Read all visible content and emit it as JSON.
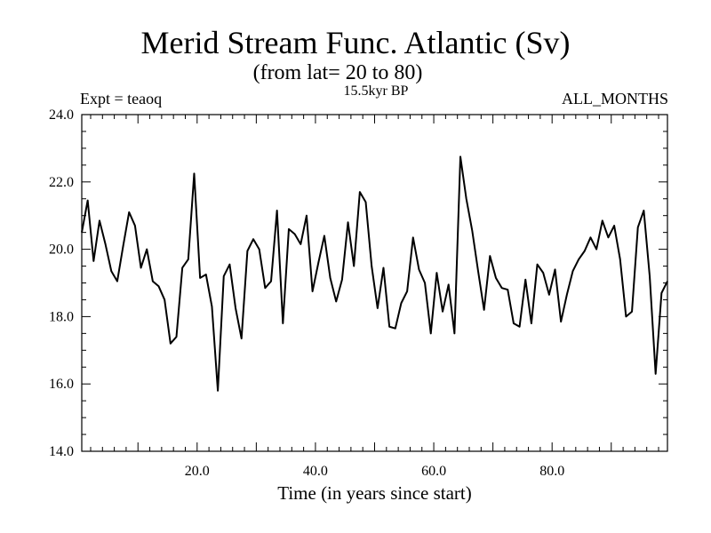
{
  "chart_data": {
    "type": "line",
    "title": "Merid Stream Func. Atlantic (Sv)",
    "subtitle": "(from lat= 20 to 80)",
    "label_left": "Expt = teaoq",
    "label_center": "15.5kyr BP",
    "label_right": "ALL_MONTHS",
    "xlabel": "Time (in years since start)",
    "ylabel": "",
    "xlim": [
      0.5,
      99.5
    ],
    "ylim": [
      14.0,
      24.0
    ],
    "x_ticks": [
      20.0,
      40.0,
      60.0,
      80.0
    ],
    "x_tick_labels": [
      "20.0",
      "40.0",
      "60.0",
      "80.0"
    ],
    "y_ticks": [
      14.0,
      16.0,
      18.0,
      20.0,
      22.0,
      24.0
    ],
    "y_tick_labels": [
      "14.0",
      "16.0",
      "18.0",
      "20.0",
      "22.0",
      "24.0"
    ],
    "grid": false,
    "series": [
      {
        "name": "Merid Stream Func. Atlantic",
        "x": [
          0.5,
          1.5,
          2.5,
          3.5,
          4.5,
          5.5,
          6.5,
          7.5,
          8.5,
          9.5,
          10.5,
          11.5,
          12.5,
          13.5,
          14.5,
          15.5,
          16.5,
          17.5,
          18.5,
          19.5,
          20.5,
          21.5,
          22.5,
          23.5,
          24.5,
          25.5,
          26.5,
          27.5,
          28.5,
          29.5,
          30.5,
          31.5,
          32.5,
          33.5,
          34.5,
          35.5,
          36.5,
          37.5,
          38.5,
          39.5,
          40.5,
          41.5,
          42.5,
          43.5,
          44.5,
          45.5,
          46.5,
          47.5,
          48.5,
          49.5,
          50.5,
          51.5,
          52.5,
          53.5,
          54.5,
          55.5,
          56.5,
          57.5,
          58.5,
          59.5,
          60.5,
          61.5,
          62.5,
          63.5,
          64.5,
          65.5,
          66.5,
          67.5,
          68.5,
          69.5,
          70.5,
          71.5,
          72.5,
          73.5,
          74.5,
          75.5,
          76.5,
          77.5,
          78.5,
          79.5,
          80.5,
          81.5,
          82.5,
          83.5,
          84.5,
          85.5,
          86.5,
          87.5,
          88.5,
          89.5,
          90.5,
          91.5,
          92.5,
          93.5,
          94.5,
          95.5,
          96.5,
          97.5,
          98.5,
          99.5
        ],
        "values": [
          20.5,
          21.45,
          19.65,
          20.85,
          20.15,
          19.35,
          19.05,
          20.1,
          21.1,
          20.7,
          19.45,
          20.0,
          19.05,
          18.9,
          18.5,
          17.2,
          17.4,
          19.45,
          19.7,
          22.25,
          19.15,
          19.25,
          18.3,
          15.8,
          19.2,
          19.55,
          18.25,
          17.35,
          19.95,
          20.3,
          20.0,
          18.85,
          19.05,
          21.15,
          17.8,
          20.6,
          20.45,
          20.15,
          21.0,
          18.75,
          19.6,
          20.4,
          19.15,
          18.45,
          19.1,
          20.8,
          19.5,
          21.7,
          21.4,
          19.5,
          18.25,
          19.45,
          17.7,
          17.65,
          18.4,
          18.75,
          20.35,
          19.4,
          19.0,
          17.5,
          19.3,
          18.15,
          18.95,
          17.5,
          22.75,
          21.5,
          20.55,
          19.35,
          18.2,
          19.8,
          19.15,
          18.85,
          18.8,
          17.8,
          17.7,
          19.1,
          17.8,
          19.55,
          19.3,
          18.65,
          19.4,
          17.85,
          18.65,
          19.35,
          19.7,
          19.95,
          20.35,
          20.0,
          20.85,
          20.35,
          20.7,
          19.7,
          18.0,
          18.15,
          20.65,
          21.15,
          19.2,
          16.3,
          18.7,
          19.05
        ]
      }
    ]
  }
}
